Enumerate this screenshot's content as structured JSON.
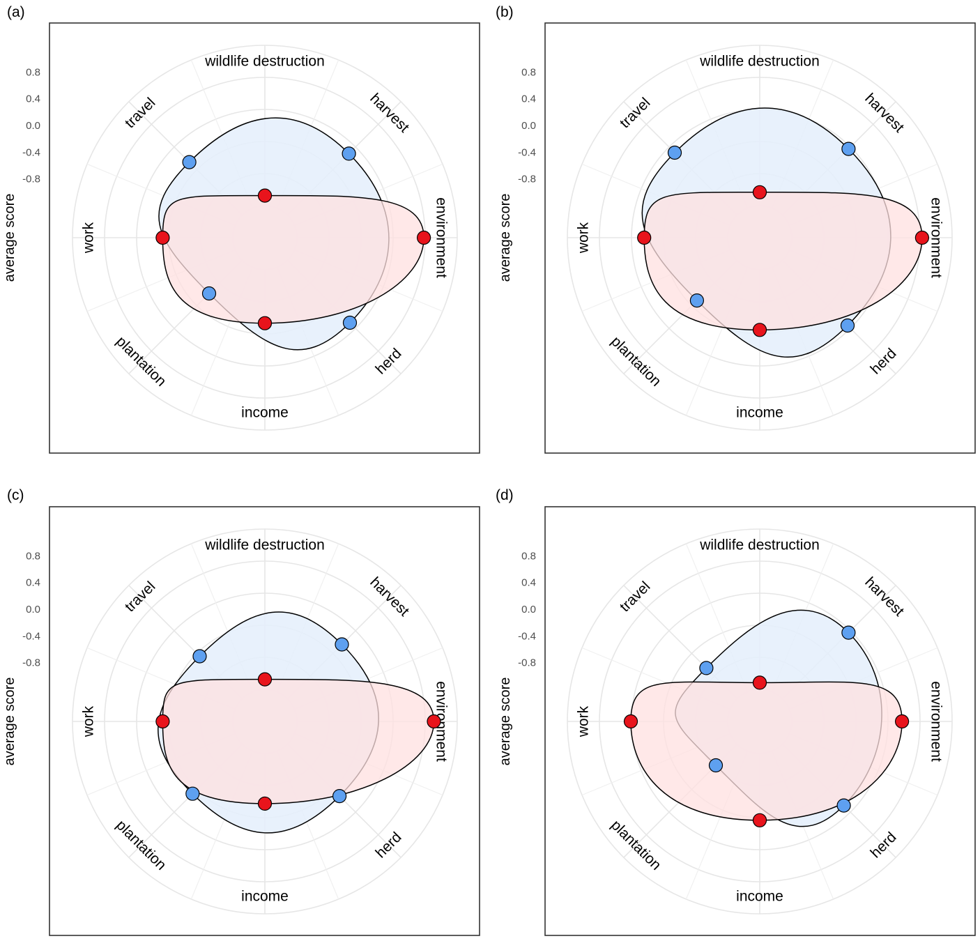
{
  "chart_data": [
    {
      "panel_label": "(a)",
      "type": "radar",
      "ylabel": "average score",
      "yticks": [
        "0.8",
        "0.4",
        "0.0",
        "-0.4",
        "-0.8"
      ],
      "ylim": [
        -1.2,
        1.2
      ],
      "axes": [
        "wildlife destruction",
        "harvest",
        "environment",
        "herd",
        "income",
        "plantation",
        "work",
        "travel"
      ],
      "grid": true,
      "series": [
        {
          "color": "#ffe0e0",
          "point_color": "#e8141c",
          "values": {
            "wildlife destruction": -1.05,
            "environment": 0.7,
            "income": -0.4,
            "work": -0.15
          }
        },
        {
          "color": "#e4eefc",
          "point_color": "#5ea0f0",
          "values": {
            "harvest": 0.1,
            "herd": 0.12,
            "plantation": -0.5,
            "travel": -0.08
          }
        }
      ]
    },
    {
      "panel_label": "(b)",
      "type": "radar",
      "ylabel": "average score",
      "yticks": [
        "0.8",
        "0.4",
        "0.0",
        "-0.4",
        "-0.8"
      ],
      "ylim": [
        -1.2,
        1.2
      ],
      "axes": [
        "wildlife destruction",
        "harvest",
        "environment",
        "herd",
        "income",
        "plantation",
        "work",
        "travel"
      ],
      "grid": true,
      "series": [
        {
          "color": "#ffe0e0",
          "point_color": "#e8141c",
          "values": {
            "wildlife destruction": -1.0,
            "environment": 0.75,
            "income": -0.3,
            "work": 0.05
          }
        },
        {
          "color": "#e4eefc",
          "point_color": "#5ea0f0",
          "values": {
            "harvest": 0.2,
            "herd": 0.18,
            "plantation": -0.35,
            "travel": 0.12
          }
        }
      ]
    },
    {
      "panel_label": "(c)",
      "type": "radar",
      "ylabel": "average score",
      "yticks": [
        "0.8",
        "0.4",
        "0.0",
        "-0.4",
        "-0.8"
      ],
      "ylim": [
        -1.2,
        1.2
      ],
      "axes": [
        "wildlife destruction",
        "harvest",
        "environment",
        "herd",
        "income",
        "plantation",
        "work",
        "travel"
      ],
      "grid": true,
      "series": [
        {
          "color": "#ffe0e0",
          "point_color": "#e8141c",
          "values": {
            "wildlife destruction": -1.05,
            "environment": 0.85,
            "income": -0.45,
            "work": -0.15
          }
        },
        {
          "color": "#e4eefc",
          "point_color": "#5ea0f0",
          "values": {
            "harvest": -0.05,
            "herd": -0.1,
            "plantation": -0.15,
            "travel": -0.3
          }
        }
      ]
    },
    {
      "panel_label": "(d)",
      "type": "radar",
      "ylabel": "average score",
      "yticks": [
        "0.8",
        "0.4",
        "0.0",
        "-0.4",
        "-0.8"
      ],
      "ylim": [
        -1.2,
        1.2
      ],
      "axes": [
        "wildlife destruction",
        "harvest",
        "environment",
        "herd",
        "income",
        "plantation",
        "work",
        "travel"
      ],
      "grid": true,
      "series": [
        {
          "color": "#ffe0e0",
          "point_color": "#e8141c",
          "values": {
            "wildlife destruction": -1.1,
            "environment": 0.45,
            "income": -0.2,
            "work": 0.25
          }
        },
        {
          "color": "#e4eefc",
          "point_color": "#5ea0f0",
          "values": {
            "harvest": 0.2,
            "herd": 0.1,
            "plantation": -0.75,
            "travel": -0.55
          }
        }
      ]
    }
  ]
}
